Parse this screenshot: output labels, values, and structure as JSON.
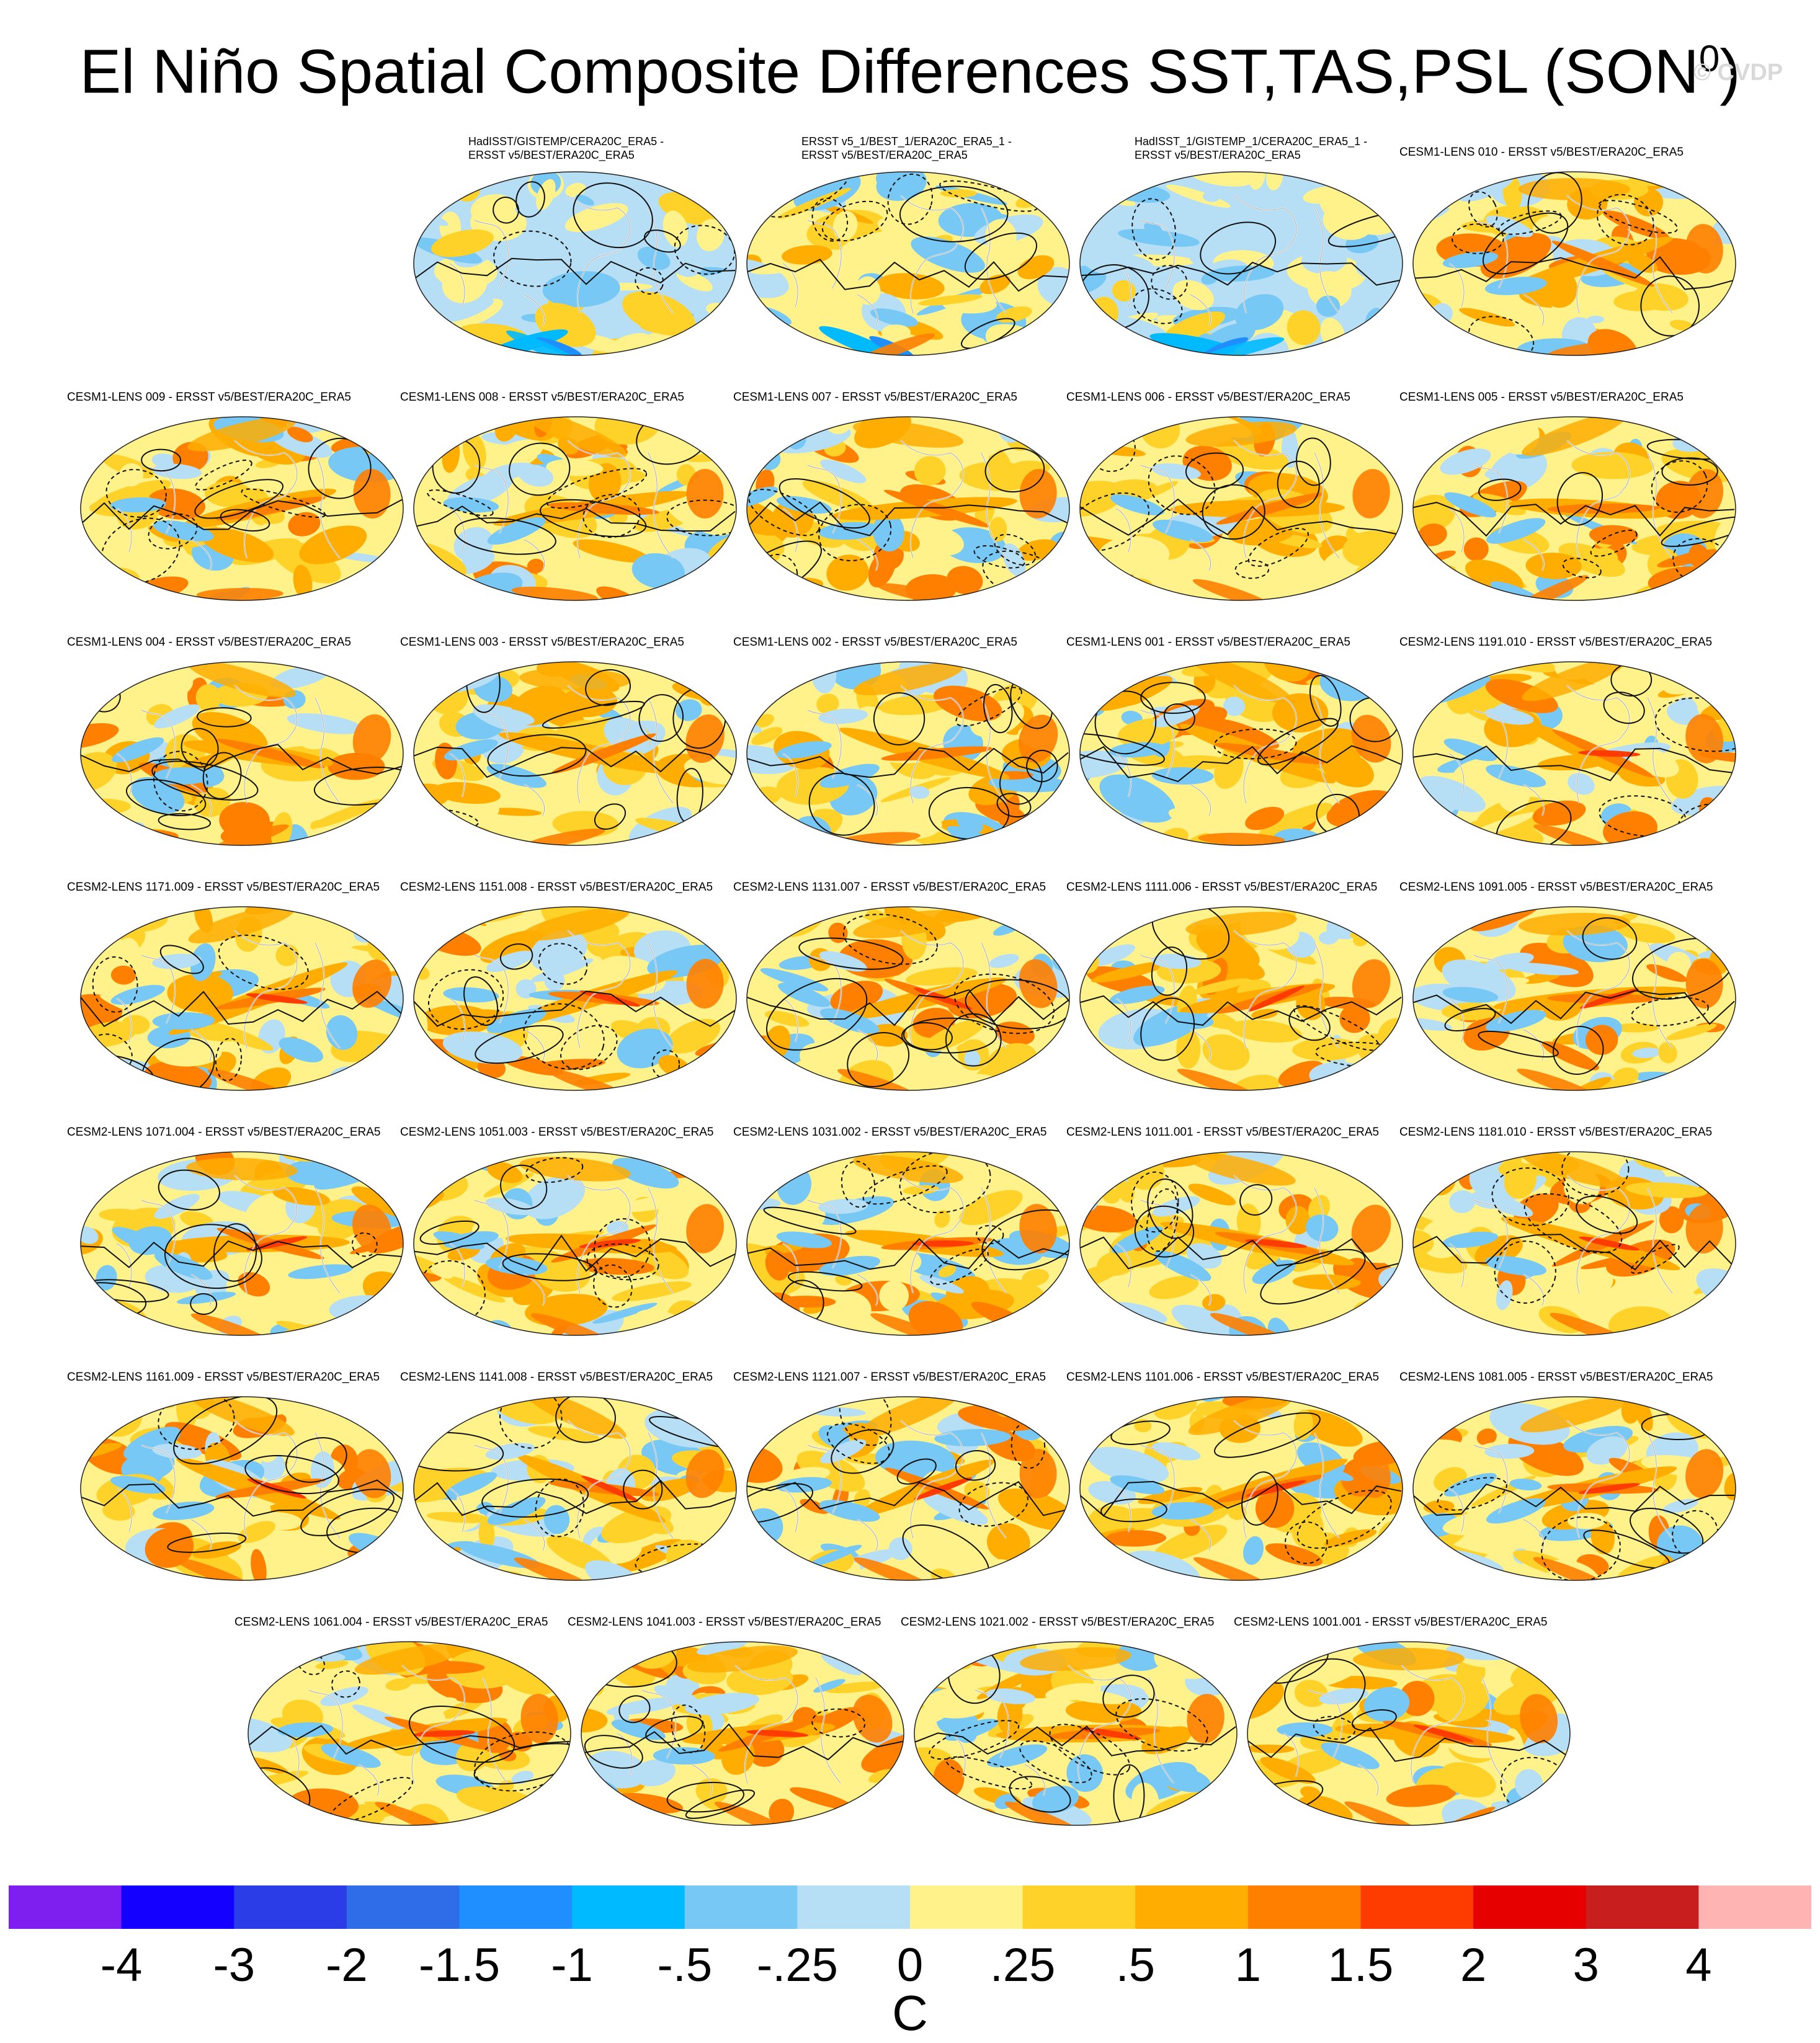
{
  "figure": {
    "title_main": "El Niño Spatial Composite Differences SST,TAS,PSL (SON",
    "title_sup": "0",
    "title_end": ")",
    "watermark": "© CVDP"
  },
  "chart_data": {
    "type": "heatmap",
    "title": "El Niño Spatial Composite Differences SST,TAS,PSL (SON0)",
    "panels": [
      {
        "row": 0,
        "col": 1,
        "label": "HadISST/GISTEMP/CERA20C_ERA5 -\nERSST v5/BEST/ERA20C_ERA5",
        "pattern": "weak"
      },
      {
        "row": 0,
        "col": 2,
        "label": "ERSST v5_1/BEST_1/ERA20C_ERA5_1 -\nERSST v5/BEST/ERA20C_ERA5",
        "pattern": "weak-warm"
      },
      {
        "row": 0,
        "col": 3,
        "label": "HadISST_1/GISTEMP_1/CERA20C_ERA5_1 -\nERSST v5/BEST/ERA20C_ERA5",
        "pattern": "weak"
      },
      {
        "row": 0,
        "col": 4,
        "label": "CESM1-LENS 010 - ERSST v5/BEST/ERA20C_ERA5",
        "pattern": "warm"
      },
      {
        "row": 1,
        "col": 0,
        "label": "CESM1-LENS 009 - ERSST v5/BEST/ERA20C_ERA5",
        "pattern": "warm"
      },
      {
        "row": 1,
        "col": 1,
        "label": "CESM1-LENS 008 - ERSST v5/BEST/ERA20C_ERA5",
        "pattern": "warm"
      },
      {
        "row": 1,
        "col": 2,
        "label": "CESM1-LENS 007 - ERSST v5/BEST/ERA20C_ERA5",
        "pattern": "warm"
      },
      {
        "row": 1,
        "col": 3,
        "label": "CESM1-LENS 006 - ERSST v5/BEST/ERA20C_ERA5",
        "pattern": "warm"
      },
      {
        "row": 1,
        "col": 4,
        "label": "CESM1-LENS 005 - ERSST v5/BEST/ERA20C_ERA5",
        "pattern": "warm"
      },
      {
        "row": 2,
        "col": 0,
        "label": "CESM1-LENS 004 - ERSST v5/BEST/ERA20C_ERA5",
        "pattern": "warm"
      },
      {
        "row": 2,
        "col": 1,
        "label": "CESM1-LENS 003 - ERSST v5/BEST/ERA20C_ERA5",
        "pattern": "warm"
      },
      {
        "row": 2,
        "col": 2,
        "label": "CESM1-LENS 002 - ERSST v5/BEST/ERA20C_ERA5",
        "pattern": "warm"
      },
      {
        "row": 2,
        "col": 3,
        "label": "CESM1-LENS 001 - ERSST v5/BEST/ERA20C_ERA5",
        "pattern": "warm"
      },
      {
        "row": 2,
        "col": 4,
        "label": "CESM2-LENS 1191.010 - ERSST v5/BEST/ERA20C_ERA5",
        "pattern": "enso"
      },
      {
        "row": 3,
        "col": 0,
        "label": "CESM2-LENS 1171.009 - ERSST v5/BEST/ERA20C_ERA5",
        "pattern": "enso"
      },
      {
        "row": 3,
        "col": 1,
        "label": "CESM2-LENS 1151.008 - ERSST v5/BEST/ERA20C_ERA5",
        "pattern": "enso"
      },
      {
        "row": 3,
        "col": 2,
        "label": "CESM2-LENS 1131.007 - ERSST v5/BEST/ERA20C_ERA5",
        "pattern": "enso"
      },
      {
        "row": 3,
        "col": 3,
        "label": "CESM2-LENS 1111.006 - ERSST v5/BEST/ERA20C_ERA5",
        "pattern": "enso"
      },
      {
        "row": 3,
        "col": 4,
        "label": "CESM2-LENS 1091.005 - ERSST v5/BEST/ERA20C_ERA5",
        "pattern": "enso"
      },
      {
        "row": 4,
        "col": 0,
        "label": "CESM2-LENS 1071.004 - ERSST v5/BEST/ERA20C_ERA5",
        "pattern": "enso"
      },
      {
        "row": 4,
        "col": 1,
        "label": "CESM2-LENS 1051.003 - ERSST v5/BEST/ERA20C_ERA5",
        "pattern": "enso"
      },
      {
        "row": 4,
        "col": 2,
        "label": "CESM2-LENS 1031.002 - ERSST v5/BEST/ERA20C_ERA5",
        "pattern": "enso"
      },
      {
        "row": 4,
        "col": 3,
        "label": "CESM2-LENS 1011.001 - ERSST v5/BEST/ERA20C_ERA5",
        "pattern": "enso"
      },
      {
        "row": 4,
        "col": 4,
        "label": "CESM2-LENS 1181.010 - ERSST v5/BEST/ERA20C_ERA5",
        "pattern": "enso"
      },
      {
        "row": 5,
        "col": 0,
        "label": "CESM2-LENS 1161.009 - ERSST v5/BEST/ERA20C_ERA5",
        "pattern": "enso"
      },
      {
        "row": 5,
        "col": 1,
        "label": "CESM2-LENS 1141.008 - ERSST v5/BEST/ERA20C_ERA5",
        "pattern": "enso"
      },
      {
        "row": 5,
        "col": 2,
        "label": "CESM2-LENS 1121.007 - ERSST v5/BEST/ERA20C_ERA5",
        "pattern": "enso"
      },
      {
        "row": 5,
        "col": 3,
        "label": "CESM2-LENS 1101.006 - ERSST v5/BEST/ERA20C_ERA5",
        "pattern": "enso"
      },
      {
        "row": 5,
        "col": 4,
        "label": "CESM2-LENS 1081.005 - ERSST v5/BEST/ERA20C_ERA5",
        "pattern": "enso"
      },
      {
        "row": 6,
        "col": 0,
        "label": "CESM2-LENS 1061.004 - ERSST v5/BEST/ERA20C_ERA5",
        "pattern": "enso"
      },
      {
        "row": 6,
        "col": 1,
        "label": "CESM2-LENS 1041.003 - ERSST v5/BEST/ERA20C_ERA5",
        "pattern": "enso"
      },
      {
        "row": 6,
        "col": 2,
        "label": "CESM2-LENS 1021.002 - ERSST v5/BEST/ERA20C_ERA5",
        "pattern": "enso"
      },
      {
        "row": 6,
        "col": 3,
        "label": "CESM2-LENS 1001.001 - ERSST v5/BEST/ERA20C_ERA5",
        "pattern": "enso"
      }
    ],
    "colorbar": {
      "colors": [
        "#7e1ff0",
        "#1400ff",
        "#2a3de6",
        "#2f6de8",
        "#1f8fff",
        "#00baff",
        "#78c8f5",
        "#b6def4",
        "#fff28a",
        "#ffd22a",
        "#ffad00",
        "#ff7f00",
        "#ff3c00",
        "#e60000",
        "#c81e1e",
        "#ffb4b4"
      ],
      "ticks": [
        "-4",
        "-3",
        "-2",
        "-1.5",
        "-1",
        "-.5",
        "-.25",
        "0",
        ".25",
        ".5",
        "1",
        "1.5",
        "2",
        "3",
        "4"
      ],
      "units": "C"
    }
  }
}
